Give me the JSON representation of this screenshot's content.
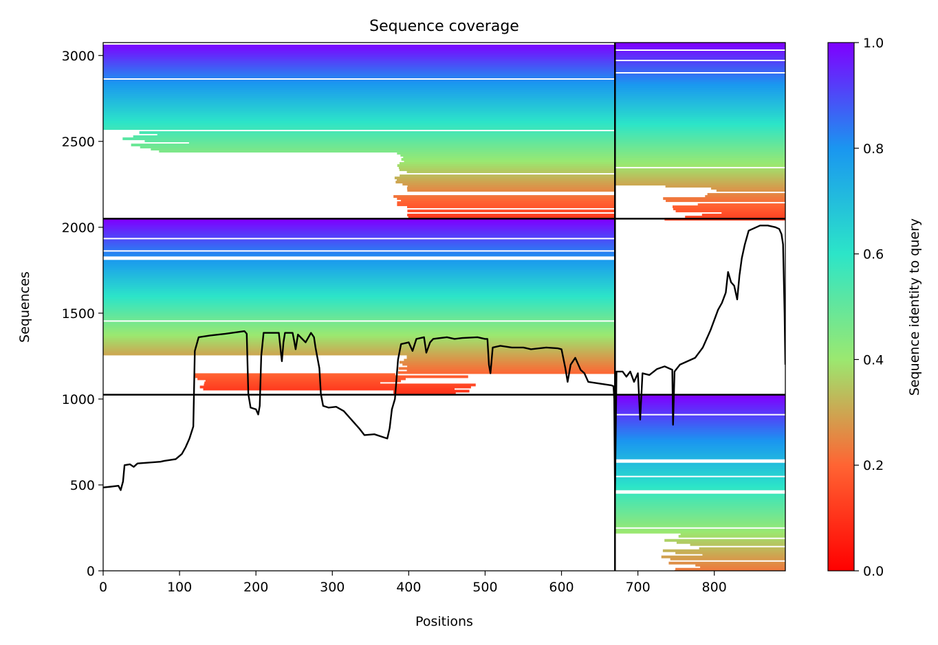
{
  "chart_data": {
    "type": "heatmap",
    "title": "Sequence coverage",
    "xlabel": "Positions",
    "ylabel": "Sequences",
    "xlim": [
      0,
      893
    ],
    "ylim": [
      0,
      3075
    ],
    "xticks": [
      0,
      100,
      200,
      300,
      400,
      500,
      600,
      700,
      800
    ],
    "yticks": [
      0,
      500,
      1000,
      1500,
      2000,
      2500,
      3000
    ],
    "colorbar": {
      "label": "Sequence identity to query",
      "colormap": "rainbow",
      "range": [
        0,
        1
      ],
      "ticks": [
        "0.0",
        "0.2",
        "0.4",
        "0.6",
        "0.8",
        "1.0"
      ]
    },
    "chain_boundaries": {
      "x": [
        670
      ],
      "y": [
        1025,
        2050
      ]
    },
    "blocks": [
      {
        "name": "chain A region 1",
        "x_range": [
          0,
          670
        ],
        "y_range": [
          2050,
          3075
        ],
        "identity_top": 1.0,
        "identity_bottom": 0.1
      },
      {
        "name": "chain B region 1",
        "x_range": [
          670,
          893
        ],
        "y_range": [
          2050,
          3075
        ],
        "identity_top": 1.0,
        "identity_bottom": 0.12
      },
      {
        "name": "chain A region 2",
        "x_range": [
          0,
          670
        ],
        "y_range": [
          1025,
          2050
        ],
        "identity_top": 1.0,
        "identity_bottom": 0.08
      },
      {
        "name": "chain B region 3",
        "x_range": [
          670,
          893
        ],
        "y_range": [
          0,
          1025
        ],
        "identity_top": 1.0,
        "identity_bottom": 0.22
      }
    ],
    "coverage_line": {
      "color": "#000000",
      "points": [
        [
          0,
          485
        ],
        [
          10,
          490
        ],
        [
          20,
          495
        ],
        [
          23,
          470
        ],
        [
          26,
          520
        ],
        [
          28,
          615
        ],
        [
          35,
          620
        ],
        [
          40,
          605
        ],
        [
          45,
          625
        ],
        [
          60,
          630
        ],
        [
          75,
          635
        ],
        [
          80,
          640
        ],
        [
          95,
          650
        ],
        [
          103,
          680
        ],
        [
          108,
          720
        ],
        [
          113,
          770
        ],
        [
          118,
          840
        ],
        [
          120,
          1280
        ],
        [
          125,
          1360
        ],
        [
          140,
          1370
        ],
        [
          160,
          1380
        ],
        [
          185,
          1395
        ],
        [
          188,
          1380
        ],
        [
          190,
          1030
        ],
        [
          193,
          950
        ],
        [
          200,
          940
        ],
        [
          203,
          910
        ],
        [
          205,
          960
        ],
        [
          207,
          1250
        ],
        [
          210,
          1385
        ],
        [
          230,
          1385
        ],
        [
          232,
          1300
        ],
        [
          234,
          1220
        ],
        [
          236,
          1330
        ],
        [
          238,
          1385
        ],
        [
          248,
          1385
        ],
        [
          250,
          1340
        ],
        [
          252,
          1290
        ],
        [
          255,
          1375
        ],
        [
          265,
          1330
        ],
        [
          272,
          1385
        ],
        [
          276,
          1360
        ],
        [
          278,
          1300
        ],
        [
          283,
          1180
        ],
        [
          285,
          1030
        ],
        [
          288,
          960
        ],
        [
          295,
          950
        ],
        [
          305,
          955
        ],
        [
          315,
          930
        ],
        [
          325,
          880
        ],
        [
          335,
          830
        ],
        [
          342,
          790
        ],
        [
          355,
          795
        ],
        [
          365,
          780
        ],
        [
          372,
          770
        ],
        [
          375,
          830
        ],
        [
          378,
          940
        ],
        [
          382,
          1000
        ],
        [
          386,
          1230
        ],
        [
          390,
          1320
        ],
        [
          400,
          1330
        ],
        [
          405,
          1280
        ],
        [
          410,
          1350
        ],
        [
          420,
          1360
        ],
        [
          423,
          1270
        ],
        [
          428,
          1330
        ],
        [
          432,
          1350
        ],
        [
          450,
          1360
        ],
        [
          460,
          1350
        ],
        [
          470,
          1355
        ],
        [
          490,
          1360
        ],
        [
          500,
          1350
        ],
        [
          503,
          1350
        ],
        [
          505,
          1200
        ],
        [
          507,
          1150
        ],
        [
          510,
          1300
        ],
        [
          520,
          1310
        ],
        [
          535,
          1300
        ],
        [
          550,
          1300
        ],
        [
          560,
          1290
        ],
        [
          580,
          1300
        ],
        [
          595,
          1295
        ],
        [
          600,
          1290
        ],
        [
          605,
          1180
        ],
        [
          608,
          1100
        ],
        [
          612,
          1200
        ],
        [
          618,
          1240
        ],
        [
          625,
          1170
        ],
        [
          630,
          1150
        ],
        [
          635,
          1100
        ],
        [
          650,
          1090
        ],
        [
          665,
          1080
        ],
        [
          668,
          1075
        ],
        [
          669,
          1000
        ],
        [
          670,
          450
        ],
        [
          672,
          1160
        ],
        [
          680,
          1160
        ],
        [
          685,
          1130
        ],
        [
          690,
          1160
        ],
        [
          695,
          1100
        ],
        [
          700,
          1150
        ],
        [
          703,
          880
        ],
        [
          706,
          1150
        ],
        [
          715,
          1140
        ],
        [
          725,
          1175
        ],
        [
          735,
          1190
        ],
        [
          745,
          1170
        ],
        [
          746,
          850
        ],
        [
          748,
          1160
        ],
        [
          755,
          1200
        ],
        [
          765,
          1220
        ],
        [
          775,
          1240
        ],
        [
          785,
          1300
        ],
        [
          795,
          1400
        ],
        [
          805,
          1520
        ],
        [
          810,
          1560
        ],
        [
          815,
          1620
        ],
        [
          818,
          1740
        ],
        [
          822,
          1680
        ],
        [
          826,
          1660
        ],
        [
          830,
          1580
        ],
        [
          833,
          1720
        ],
        [
          836,
          1820
        ],
        [
          840,
          1900
        ],
        [
          845,
          1980
        ],
        [
          850,
          1990
        ],
        [
          860,
          2010
        ],
        [
          870,
          2010
        ],
        [
          880,
          2000
        ],
        [
          885,
          1990
        ],
        [
          888,
          1960
        ],
        [
          890,
          1900
        ],
        [
          892,
          1500
        ],
        [
          893,
          1200
        ]
      ]
    }
  }
}
